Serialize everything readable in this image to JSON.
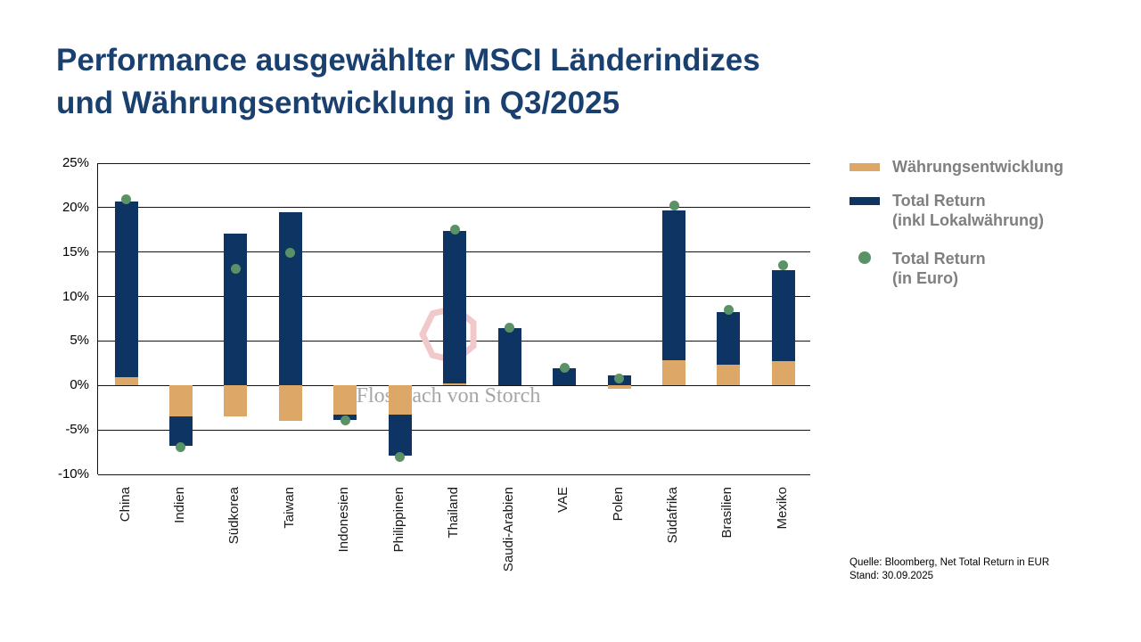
{
  "title": {
    "line1": "Performance ausgewählter MSCI Länderindizes",
    "line2": "und Währungsentwicklung in Q3/2025"
  },
  "watermark": {
    "text": "Flossbach von Storch"
  },
  "legend": {
    "items": [
      {
        "swatch": "bar",
        "color": "#dda768",
        "lines": [
          "Währungsentwicklung"
        ]
      },
      {
        "swatch": "bar",
        "color": "#0e3463",
        "lines": [
          "Total Return",
          "(inkl Lokalwährung)"
        ]
      },
      {
        "swatch": "dot",
        "color": "#5a9267",
        "lines": [
          "Total Return",
          "(in Euro)"
        ]
      }
    ]
  },
  "source": {
    "line1": "Quelle: Bloomberg, Net Total Return in EUR",
    "line2": "Stand: 30.09.2025"
  },
  "colors": {
    "title_navy": "#1a4070",
    "currency_orange": "#dda768",
    "total_return_navy": "#0e3463",
    "euro_dot_green": "#5a9267",
    "legend_text_gray": "#7f7f7f",
    "watermark_pink": "#f2c9cb",
    "watermark_gray": "#a6a6a6"
  },
  "chart_data": {
    "type": "bar",
    "stacked": true,
    "title": "Performance ausgewählter MSCI Länderindizes und Währungsentwicklung in Q3/2025",
    "categories": [
      "China",
      "Indien",
      "Südkorea",
      "Taiwan",
      "Indonesien",
      "Philippinen",
      "Thailand",
      "Saudi-Arabien",
      "VAE",
      "Polen",
      "Südafrika",
      "Brasilien",
      "Mexiko"
    ],
    "series": [
      {
        "name": "Währungsentwicklung",
        "type": "bar",
        "color": "#dda768",
        "values": [
          0.9,
          -3.5,
          -3.5,
          -4.0,
          -3.3,
          -3.3,
          0.2,
          0.0,
          0.0,
          -0.4,
          2.8,
          2.3,
          2.7
        ]
      },
      {
        "name": "Total Return (inkl Lokalwährung)",
        "type": "bar",
        "color": "#0e3463",
        "values": [
          19.8,
          -3.3,
          17.1,
          19.5,
          -0.6,
          -4.6,
          17.2,
          6.4,
          1.9,
          1.1,
          16.9,
          6.0,
          10.3
        ]
      },
      {
        "name": "Total Return (in Euro)",
        "type": "scatter",
        "color": "#5a9267",
        "values": [
          20.9,
          -6.9,
          13.1,
          14.9,
          -3.9,
          -8.0,
          17.5,
          6.5,
          2.0,
          0.8,
          20.2,
          8.5,
          13.5
        ]
      }
    ],
    "ylim": [
      -10,
      25
    ],
    "yticks": [
      {
        "v": 25,
        "label": "25%"
      },
      {
        "v": 20,
        "label": "20%"
      },
      {
        "v": 15,
        "label": "15%"
      },
      {
        "v": 10,
        "label": "10%"
      },
      {
        "v": 5,
        "label": "5%"
      },
      {
        "v": 0,
        "label": "0%"
      },
      {
        "v": -5,
        "label": "-5%"
      },
      {
        "v": -10,
        "label": "-10%"
      }
    ],
    "grid": "horizontal",
    "legend_position": "right"
  }
}
